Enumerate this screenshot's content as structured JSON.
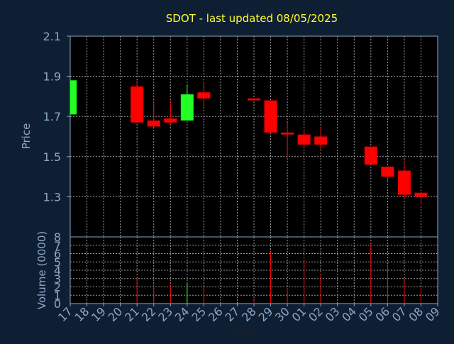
{
  "chart_data": [
    {
      "type": "candlestick",
      "title": "SDOT - last updated 08/05/2025",
      "ylabel": "Price",
      "ylim": [
        1.1,
        2.1
      ],
      "yticks": [
        "2.1",
        "1.9",
        "1.7",
        "1.5",
        "1.3"
      ],
      "grid": true,
      "colors": {
        "up": "#22ff22",
        "down": "#ff0000",
        "title": "#ffff33",
        "axis_text": "#8aa8c8",
        "background": "#0f1f33",
        "plot_bg": "#000000"
      },
      "x": [
        "17",
        "18",
        "19",
        "20",
        "21",
        "22",
        "23",
        "24",
        "25",
        "26",
        "27",
        "28",
        "29",
        "30",
        "01",
        "02",
        "03",
        "04",
        "05",
        "06",
        "07",
        "08",
        "09"
      ],
      "candles": [
        {
          "day": "17",
          "open": 1.71,
          "high": 1.88,
          "low": 1.71,
          "close": 1.88
        },
        {
          "day": "21",
          "open": 1.85,
          "high": 1.88,
          "low": 1.67,
          "close": 1.67
        },
        {
          "day": "22",
          "open": 1.68,
          "high": 1.78,
          "low": 1.65,
          "close": 1.65
        },
        {
          "day": "23",
          "open": 1.69,
          "high": 1.78,
          "low": 1.66,
          "close": 1.67
        },
        {
          "day": "24",
          "open": 1.68,
          "high": 1.86,
          "low": 1.68,
          "close": 1.81
        },
        {
          "day": "25",
          "open": 1.82,
          "high": 1.87,
          "low": 1.75,
          "close": 1.79
        },
        {
          "day": "28",
          "open": 1.79,
          "high": 1.79,
          "low": 1.78,
          "close": 1.78
        },
        {
          "day": "29",
          "open": 1.78,
          "high": 1.78,
          "low": 1.62,
          "close": 1.62
        },
        {
          "day": "30",
          "open": 1.62,
          "high": 1.67,
          "low": 1.5,
          "close": 1.61
        },
        {
          "day": "01",
          "open": 1.61,
          "high": 1.63,
          "low": 1.55,
          "close": 1.56
        },
        {
          "day": "02",
          "open": 1.6,
          "high": 1.65,
          "low": 1.53,
          "close": 1.56
        },
        {
          "day": "05",
          "open": 1.55,
          "high": 1.55,
          "low": 1.46,
          "close": 1.46
        },
        {
          "day": "06",
          "open": 1.45,
          "high": 1.45,
          "low": 1.38,
          "close": 1.4
        },
        {
          "day": "07",
          "open": 1.43,
          "high": 1.48,
          "low": 1.29,
          "close": 1.31
        },
        {
          "day": "08",
          "open": 1.32,
          "high": 1.34,
          "low": 1.26,
          "close": 1.3
        }
      ]
    },
    {
      "type": "bar",
      "xlabel": "Day",
      "ylabel": "Volume (0000)",
      "ylim": [
        0,
        8
      ],
      "yticks": [
        "8",
        "7",
        "6",
        "5",
        "4",
        "3",
        "2",
        "1",
        "0"
      ],
      "grid": true,
      "categories": [
        "17",
        "18",
        "19",
        "20",
        "21",
        "22",
        "23",
        "24",
        "25",
        "26",
        "27",
        "28",
        "29",
        "30",
        "01",
        "02",
        "03",
        "04",
        "05",
        "06",
        "07",
        "08",
        "09"
      ],
      "values": [
        0,
        0,
        0,
        0,
        3.2,
        2.3,
        2.3,
        2.4,
        2.0,
        0,
        0,
        0.3,
        6.2,
        1.9,
        5.2,
        3.5,
        0,
        0,
        7.2,
        4.7,
        3.0,
        1.9,
        0
      ],
      "bar_colors": [
        "#ff0000",
        "#ff0000",
        "#ff0000",
        "#ff0000",
        "#ff0000",
        "#ff0000",
        "#ff0000",
        "#22ff22",
        "#ff0000",
        "#ff0000",
        "#ff0000",
        "#ff0000",
        "#ff0000",
        "#ff0000",
        "#ff0000",
        "#ff0000",
        "#ff0000",
        "#ff0000",
        "#ff0000",
        "#ff0000",
        "#ff0000",
        "#ff0000",
        "#ff0000"
      ]
    }
  ]
}
